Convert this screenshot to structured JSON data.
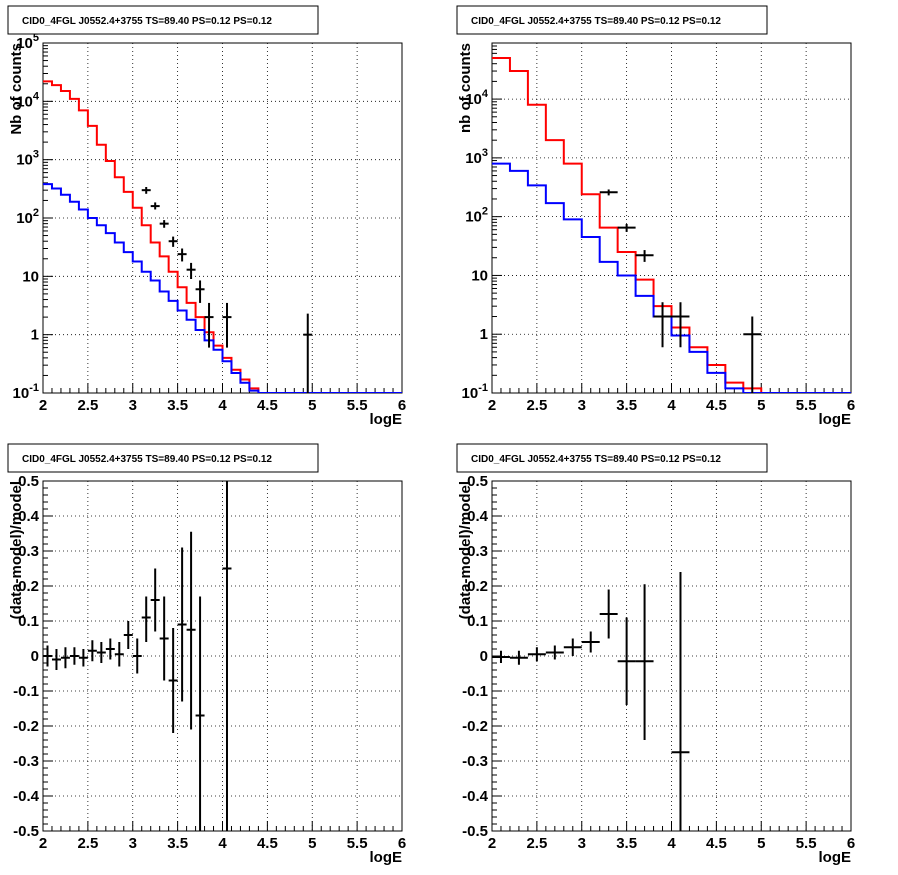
{
  "chart_data": [
    {
      "type": "line",
      "title": "CID0_4FGL J0552.4+3755 TS=89.40 PS=0.12 PS=0.12",
      "xlabel": "logE",
      "ylabel": "Nb of counts",
      "xlim": [
        2,
        6
      ],
      "ylim": [
        0.1,
        100000
      ],
      "log_y": true,
      "grid": true,
      "x_ticks": [
        "2",
        "2.5",
        "3",
        "3.5",
        "4",
        "4.5",
        "5",
        "5.5",
        "6"
      ],
      "y_ticks": [
        "10^-1",
        "1",
        "10",
        "10^2",
        "10^3",
        "10^4",
        "10^5"
      ],
      "series": [
        {
          "color": "#ff0000",
          "style": "step",
          "bin_edges_start": 2.0,
          "bin_width": 0.1,
          "values": [
            22000,
            19000,
            15000,
            11000,
            7000,
            3800,
            1800,
            950,
            500,
            280,
            150,
            75,
            38,
            22,
            12,
            6.5,
            3.5,
            2.0,
            1.1,
            0.65,
            0.4,
            0.25,
            0.17,
            0.12,
            0.1,
            0.1,
            0.1,
            0.1,
            0.1,
            0.1,
            0.1,
            0.1,
            0.1,
            0.1,
            0.1,
            0.1,
            0.1,
            0.1,
            0.1,
            0.1
          ]
        },
        {
          "color": "#0000ff",
          "style": "step",
          "bin_edges_start": 2.0,
          "bin_width": 0.1,
          "values": [
            380,
            320,
            250,
            190,
            140,
            100,
            75,
            55,
            38,
            26,
            18,
            12,
            8.5,
            5.5,
            3.8,
            2.6,
            1.8,
            1.2,
            0.8,
            0.55,
            0.35,
            0.22,
            0.15,
            0.11,
            0.1,
            0.1,
            0.1,
            0.1,
            0.1,
            0.1,
            0.1,
            0.1,
            0.1,
            0.1,
            0.1,
            0.1,
            0.1,
            0.1,
            0.1,
            0.1
          ]
        },
        {
          "color": "#000000",
          "style": "errorbars",
          "points": [
            {
              "x": 3.15,
              "y": 300,
              "xerr": 0.05,
              "ylo": 260,
              "yhi": 340
            },
            {
              "x": 3.25,
              "y": 160,
              "xerr": 0.05,
              "ylo": 140,
              "yhi": 185
            },
            {
              "x": 3.35,
              "y": 80,
              "xerr": 0.05,
              "ylo": 68,
              "yhi": 92
            },
            {
              "x": 3.45,
              "y": 40,
              "xerr": 0.05,
              "ylo": 32,
              "yhi": 48
            },
            {
              "x": 3.55,
              "y": 24,
              "xerr": 0.05,
              "ylo": 18,
              "yhi": 30
            },
            {
              "x": 3.65,
              "y": 13,
              "xerr": 0.05,
              "ylo": 9,
              "yhi": 17
            },
            {
              "x": 3.75,
              "y": 6,
              "xerr": 0.05,
              "ylo": 3.5,
              "yhi": 8.5
            },
            {
              "x": 3.85,
              "y": 2,
              "xerr": 0.05,
              "ylo": 0.6,
              "yhi": 3.5
            },
            {
              "x": 4.05,
              "y": 2,
              "xerr": 0.05,
              "ylo": 0.6,
              "yhi": 3.5
            },
            {
              "x": 4.95,
              "y": 1,
              "xerr": 0.05,
              "ylo": 0.1,
              "yhi": 2.3
            }
          ]
        }
      ]
    },
    {
      "type": "line",
      "title": "CID0_4FGL J0552.4+3755 TS=89.40 PS=0.12 PS=0.12",
      "xlabel": "logE",
      "ylabel": "nb of counts",
      "xlim": [
        2,
        6
      ],
      "ylim": [
        0.1,
        90000
      ],
      "log_y": true,
      "grid": true,
      "x_ticks": [
        "2",
        "2.5",
        "3",
        "3.5",
        "4",
        "4.5",
        "5",
        "5.5",
        "6"
      ],
      "y_ticks": [
        "10^-1",
        "1",
        "10",
        "10^2",
        "10^3",
        "10^4"
      ],
      "series": [
        {
          "color": "#ff0000",
          "style": "step",
          "bin_edges_start": 2.0,
          "bin_width": 0.2,
          "values": [
            50000,
            30000,
            8000,
            2000,
            800,
            240,
            65,
            25,
            8.5,
            3.0,
            1.3,
            0.6,
            0.3,
            0.15,
            0.12,
            0.1,
            0.1,
            0.1,
            0.1,
            0.1
          ]
        },
        {
          "color": "#0000ff",
          "style": "step",
          "bin_edges_start": 2.0,
          "bin_width": 0.2,
          "values": [
            800,
            600,
            340,
            170,
            90,
            45,
            17,
            10,
            4.5,
            2.0,
            0.95,
            0.5,
            0.22,
            0.12,
            0.1,
            0.1,
            0.1,
            0.1,
            0.1,
            0.1
          ]
        },
        {
          "color": "#000000",
          "style": "errorbars",
          "points": [
            {
              "x": 3.3,
              "y": 260,
              "xerr": 0.1,
              "ylo": 230,
              "yhi": 290
            },
            {
              "x": 3.5,
              "y": 65,
              "xerr": 0.1,
              "ylo": 55,
              "yhi": 75
            },
            {
              "x": 3.7,
              "y": 22,
              "xerr": 0.1,
              "ylo": 17,
              "yhi": 27
            },
            {
              "x": 3.9,
              "y": 2,
              "xerr": 0.1,
              "ylo": 0.6,
              "yhi": 3.5
            },
            {
              "x": 4.1,
              "y": 2,
              "xerr": 0.1,
              "ylo": 0.6,
              "yhi": 3.5
            },
            {
              "x": 4.9,
              "y": 1,
              "xerr": 0.1,
              "ylo": 0.1,
              "yhi": 2.0
            }
          ]
        }
      ]
    },
    {
      "type": "scatter",
      "title": "CID0_4FGL J0552.4+3755 TS=89.40 PS=0.12 PS=0.12",
      "xlabel": "logE",
      "ylabel": "(data-model)/model",
      "xlim": [
        2,
        6
      ],
      "ylim": [
        -0.5,
        0.5
      ],
      "grid": true,
      "x_ticks": [
        "2",
        "2.5",
        "3",
        "3.5",
        "4",
        "4.5",
        "5",
        "5.5",
        "6"
      ],
      "y_ticks": [
        "-0.5",
        "-0.4",
        "-0.3",
        "-0.2",
        "-0.1",
        "0",
        "0.1",
        "0.2",
        "0.3",
        "0.4",
        "0.5"
      ],
      "series": [
        {
          "color": "#000000",
          "style": "errorbars",
          "points": [
            {
              "x": 2.05,
              "y": 0.0,
              "xerr": 0.05,
              "ylo": -0.03,
              "yhi": 0.03
            },
            {
              "x": 2.15,
              "y": -0.01,
              "xerr": 0.05,
              "ylo": -0.04,
              "yhi": 0.02
            },
            {
              "x": 2.25,
              "y": -0.005,
              "xerr": 0.05,
              "ylo": -0.035,
              "yhi": 0.025
            },
            {
              "x": 2.35,
              "y": 0.0,
              "xerr": 0.05,
              "ylo": -0.025,
              "yhi": 0.025
            },
            {
              "x": 2.45,
              "y": -0.005,
              "xerr": 0.05,
              "ylo": -0.03,
              "yhi": 0.02
            },
            {
              "x": 2.55,
              "y": 0.015,
              "xerr": 0.05,
              "ylo": -0.015,
              "yhi": 0.045
            },
            {
              "x": 2.65,
              "y": 0.01,
              "xerr": 0.05,
              "ylo": -0.02,
              "yhi": 0.04
            },
            {
              "x": 2.75,
              "y": 0.02,
              "xerr": 0.05,
              "ylo": -0.01,
              "yhi": 0.05
            },
            {
              "x": 2.85,
              "y": 0.005,
              "xerr": 0.05,
              "ylo": -0.03,
              "yhi": 0.04
            },
            {
              "x": 2.95,
              "y": 0.06,
              "xerr": 0.05,
              "ylo": 0.02,
              "yhi": 0.1
            },
            {
              "x": 3.05,
              "y": 0.0,
              "xerr": 0.05,
              "ylo": -0.05,
              "yhi": 0.05
            },
            {
              "x": 3.15,
              "y": 0.11,
              "xerr": 0.05,
              "ylo": 0.04,
              "yhi": 0.17
            },
            {
              "x": 3.25,
              "y": 0.16,
              "xerr": 0.05,
              "ylo": 0.07,
              "yhi": 0.25
            },
            {
              "x": 3.35,
              "y": 0.05,
              "xerr": 0.05,
              "ylo": -0.07,
              "yhi": 0.17
            },
            {
              "x": 3.45,
              "y": -0.07,
              "xerr": 0.05,
              "ylo": -0.22,
              "yhi": 0.08
            },
            {
              "x": 3.55,
              "y": 0.09,
              "xerr": 0.05,
              "ylo": -0.13,
              "yhi": 0.31
            },
            {
              "x": 3.65,
              "y": 0.075,
              "xerr": 0.05,
              "ylo": -0.21,
              "yhi": 0.355
            },
            {
              "x": 3.75,
              "y": -0.17,
              "xerr": 0.05,
              "ylo": -0.5,
              "yhi": 0.17
            },
            {
              "x": 4.05,
              "y": 0.25,
              "xerr": 0.05,
              "ylo": -0.5,
              "yhi": 0.5
            }
          ]
        }
      ]
    },
    {
      "type": "scatter",
      "title": "CID0_4FGL J0552.4+3755 TS=89.40 PS=0.12 PS=0.12",
      "xlabel": "logE",
      "ylabel": "(data-model)/model",
      "xlim": [
        2,
        6
      ],
      "ylim": [
        -0.5,
        0.5
      ],
      "grid": true,
      "x_ticks": [
        "2",
        "2.5",
        "3",
        "3.5",
        "4",
        "4.5",
        "5",
        "5.5",
        "6"
      ],
      "y_ticks": [
        "-0.5",
        "-0.4",
        "-0.3",
        "-0.2",
        "-0.1",
        "0",
        "0.1",
        "0.2",
        "0.3",
        "0.4",
        "0.5"
      ],
      "series": [
        {
          "color": "#000000",
          "style": "errorbars",
          "points": [
            {
              "x": 2.1,
              "y": -0.003,
              "xerr": 0.1,
              "ylo": -0.02,
              "yhi": 0.015
            },
            {
              "x": 2.3,
              "y": -0.005,
              "xerr": 0.1,
              "ylo": -0.025,
              "yhi": 0.015
            },
            {
              "x": 2.5,
              "y": 0.005,
              "xerr": 0.1,
              "ylo": -0.015,
              "yhi": 0.025
            },
            {
              "x": 2.7,
              "y": 0.01,
              "xerr": 0.1,
              "ylo": -0.01,
              "yhi": 0.03
            },
            {
              "x": 2.9,
              "y": 0.025,
              "xerr": 0.1,
              "ylo": 0.0,
              "yhi": 0.05
            },
            {
              "x": 3.1,
              "y": 0.04,
              "xerr": 0.1,
              "ylo": 0.01,
              "yhi": 0.07
            },
            {
              "x": 3.3,
              "y": 0.12,
              "xerr": 0.1,
              "ylo": 0.05,
              "yhi": 0.19
            },
            {
              "x": 3.5,
              "y": -0.015,
              "xerr": 0.1,
              "ylo": -0.14,
              "yhi": 0.11
            },
            {
              "x": 3.7,
              "y": -0.015,
              "xerr": 0.1,
              "ylo": -0.24,
              "yhi": 0.205
            },
            {
              "x": 4.1,
              "y": -0.275,
              "xerr": 0.1,
              "ylo": -0.5,
              "yhi": 0.24
            }
          ]
        }
      ]
    }
  ]
}
